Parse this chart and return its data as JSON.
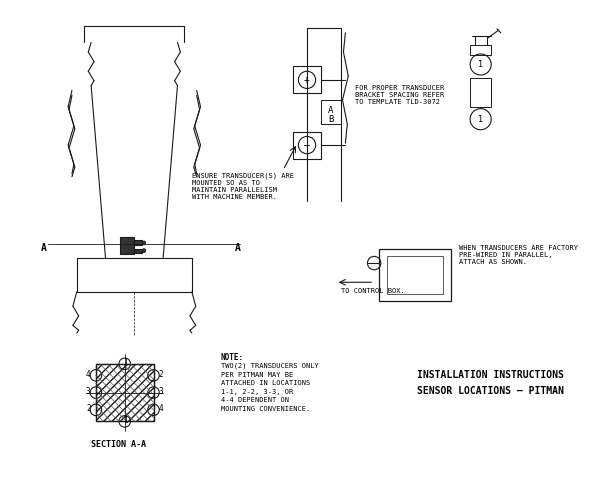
{
  "bg_color": "#f5f5f0",
  "line_color": "#1a1a1a",
  "title1": "INSTALLATION INSTRUCTIONS",
  "title2": "SENSOR LOCATIONS – PITMAN",
  "note_title": "NOTE:",
  "note_lines": [
    "TWO(2) TRANSDUCERS ONLY",
    "PER PITMAN MAY BE",
    "ATTACHED IN LOCATIONS",
    "1-1, 2-2, 3-3, OR",
    "4-4 DEPENDENT ON",
    "MOUNTING CONVENIENCE."
  ],
  "label_ensure": "ENSURE TRANSDUCER(S) ARE\nMOUNTED SO AS TO\nMAINTAIN PARALLELISM\nWITH MACHINE MEMBER.",
  "label_template": "FOR PROPER TRANSDUCER\nBRACKET SPACING REFER\nTO TEMPLATE TLD-3072",
  "label_parallel": "WHEN TRANSDUCERS ARE FACTORY\nPRE-WIRED IN PARALLEL,\nATTACH AS SHOWN.",
  "label_control": "TO CONTROL BOX.",
  "label_section": "SECTION A-A",
  "label_A_left": "A",
  "label_A_right": "A"
}
